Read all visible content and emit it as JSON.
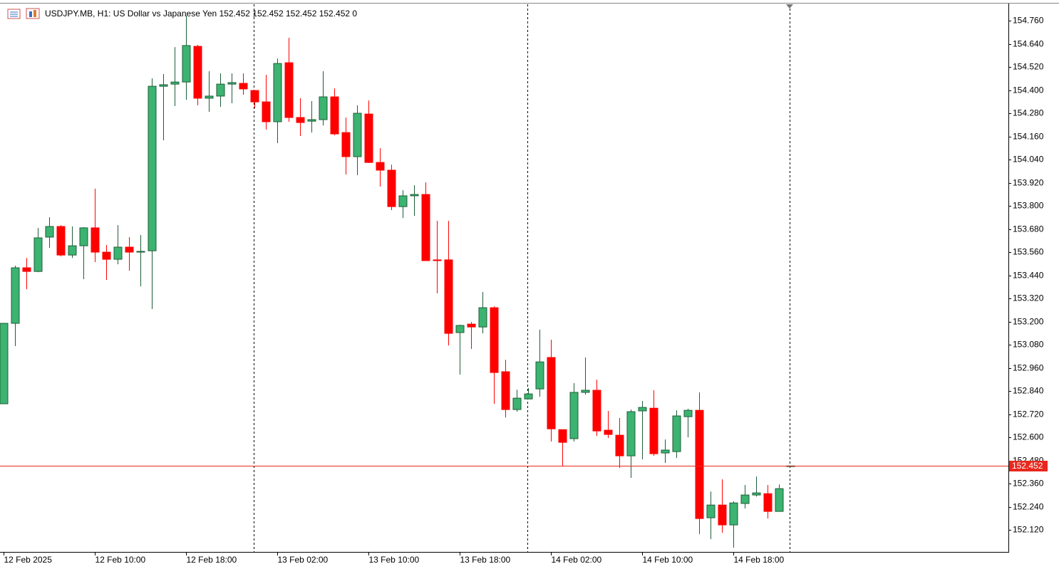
{
  "chart_data": {
    "type": "candlestick",
    "title": "USDJPY.MB, H1:  US Dollar vs Japanese Yen  152.452 152.452 152.452 152.452  0",
    "categories": [
      "12 Feb 2025",
      null,
      null,
      null,
      null,
      null,
      null,
      null,
      "12 Feb 10:00",
      null,
      null,
      null,
      null,
      null,
      null,
      null,
      "12 Feb 18:00",
      null,
      null,
      null,
      null,
      null,
      null,
      null,
      "13 Feb 02:00",
      null,
      null,
      null,
      null,
      null,
      null,
      null,
      "13 Feb 10:00",
      null,
      null,
      null,
      null,
      null,
      null,
      null,
      "13 Feb 18:00",
      null,
      null,
      null,
      null,
      null,
      null,
      null,
      "14 Feb 02:00",
      null,
      null,
      null,
      null,
      null,
      null,
      null,
      "14 Feb 10:00",
      null,
      null,
      null,
      null,
      null,
      null,
      null,
      "14 Feb 18:00",
      null,
      null,
      null,
      null,
      null
    ],
    "open": [
      152.774,
      153.191,
      153.479,
      153.46,
      153.638,
      153.693,
      153.545,
      153.593,
      153.686,
      153.56,
      153.523,
      153.586,
      153.56,
      153.567,
      154.42,
      154.431,
      154.442,
      154.627,
      154.358,
      154.369,
      154.431,
      154.435,
      154.398,
      154.339,
      154.236,
      154.542,
      154.258,
      154.239,
      154.247,
      154.365,
      154.18,
      154.055,
      154.276,
      154.025,
      153.985,
      153.796,
      153.852,
      153.859,
      153.52,
      153.52,
      153.143,
      153.187,
      153.172,
      153.272,
      152.94,
      152.744,
      152.799,
      152.851,
      153.014,
      152.64,
      152.593,
      152.833,
      152.844,
      152.637,
      152.611,
      152.504,
      152.737,
      152.751,
      152.519,
      152.526,
      152.707,
      152.74,
      152.183,
      152.249,
      152.146,
      152.257,
      152.301,
      152.308,
      152.216,
      152.452
    ],
    "high": [
      153.191,
      153.49,
      153.53,
      153.686,
      153.741,
      153.7,
      153.693,
      153.69,
      153.889,
      153.597,
      153.7,
      153.638,
      153.649,
      154.461,
      154.483,
      154.623,
      154.786,
      154.634,
      154.498,
      154.487,
      154.487,
      154.487,
      154.398,
      154.479,
      154.564,
      154.671,
      154.358,
      154.343,
      154.498,
      154.409,
      154.258,
      154.321,
      154.346,
      154.099,
      154.014,
      153.881,
      153.907,
      153.922,
      153.722,
      153.722,
      153.184,
      153.198,
      153.353,
      153.279,
      153.002,
      152.847,
      152.855,
      153.158,
      153.106,
      152.64,
      152.881,
      153.014,
      152.899,
      152.737,
      152.7,
      152.744,
      152.788,
      152.844,
      152.589,
      152.74,
      152.748,
      152.833,
      152.319,
      152.382,
      152.268,
      152.353,
      152.397,
      152.353,
      152.356,
      152.452
    ],
    "low": [
      152.774,
      153.073,
      153.368,
      153.456,
      153.582,
      153.538,
      153.53,
      153.42,
      153.508,
      153.416,
      153.497,
      153.464,
      153.383,
      153.265,
      154.14,
      154.317,
      154.35,
      154.321,
      154.287,
      154.313,
      154.332,
      154.376,
      154.306,
      154.195,
      154.125,
      154.236,
      154.162,
      154.18,
      154.217,
      154.166,
      153.962,
      153.959,
      154.022,
      153.9,
      153.778,
      153.737,
      153.748,
      153.516,
      153.346,
      153.076,
      152.925,
      153.058,
      153.139,
      152.774,
      152.703,
      152.733,
      152.799,
      152.81,
      152.578,
      152.449,
      152.578,
      152.822,
      152.607,
      152.596,
      152.441,
      152.39,
      152.486,
      152.504,
      152.467,
      152.493,
      152.6,
      152.098,
      152.072,
      152.105,
      152.028,
      152.231,
      152.293,
      152.179,
      152.216,
      152.452
    ],
    "close": [
      153.191,
      153.479,
      153.46,
      153.634,
      153.693,
      153.545,
      153.593,
      153.686,
      153.56,
      153.523,
      153.586,
      153.56,
      153.564,
      154.42,
      154.428,
      154.442,
      154.631,
      154.358,
      154.369,
      154.431,
      154.439,
      154.406,
      154.339,
      154.236,
      154.538,
      154.258,
      154.232,
      154.247,
      154.365,
      154.173,
      154.055,
      154.28,
      154.025,
      153.985,
      153.796,
      153.852,
      153.859,
      153.516,
      153.516,
      153.139,
      153.18,
      153.172,
      153.272,
      152.936,
      152.744,
      152.803,
      152.825,
      152.991,
      152.644,
      152.574,
      152.833,
      152.844,
      152.633,
      152.615,
      152.504,
      152.733,
      152.755,
      152.515,
      152.534,
      152.711,
      152.74,
      152.179,
      152.249,
      152.146,
      152.26,
      152.301,
      152.312,
      152.216,
      152.334,
      152.452
    ],
    "up_color": "#3cb371",
    "up_line_color": "#1e5e38",
    "down_color": "#ff0000",
    "ylim": [
      152.006,
      154.845
    ],
    "yticks": [
      {
        "value": 154.76,
        "label": "154.760"
      },
      {
        "value": 154.64,
        "label": "154.640"
      },
      {
        "value": 154.52,
        "label": "154.520"
      },
      {
        "value": 154.4,
        "label": "154.400"
      },
      {
        "value": 154.28,
        "label": "154.280"
      },
      {
        "value": 154.16,
        "label": "154.160"
      },
      {
        "value": 154.04,
        "label": "154.040"
      },
      {
        "value": 153.92,
        "label": "153.920"
      },
      {
        "value": 153.8,
        "label": "153.800"
      },
      {
        "value": 153.68,
        "label": "153.680"
      },
      {
        "value": 153.56,
        "label": "153.560"
      },
      {
        "value": 153.44,
        "label": "153.440"
      },
      {
        "value": 153.32,
        "label": "153.320"
      },
      {
        "value": 153.2,
        "label": "153.200"
      },
      {
        "value": 153.08,
        "label": "153.080"
      },
      {
        "value": 152.96,
        "label": "152.960"
      },
      {
        "value": 152.84,
        "label": "152.840"
      },
      {
        "value": 152.72,
        "label": "152.720"
      },
      {
        "value": 152.6,
        "label": "152.600"
      },
      {
        "value": 152.48,
        "label": "152.480"
      },
      {
        "value": 152.36,
        "label": "152.360"
      },
      {
        "value": 152.24,
        "label": "152.240"
      },
      {
        "value": 152.12,
        "label": "152.120"
      }
    ],
    "grid": false,
    "last_price": 152.452,
    "last_price_color": "#e8281e"
  }
}
